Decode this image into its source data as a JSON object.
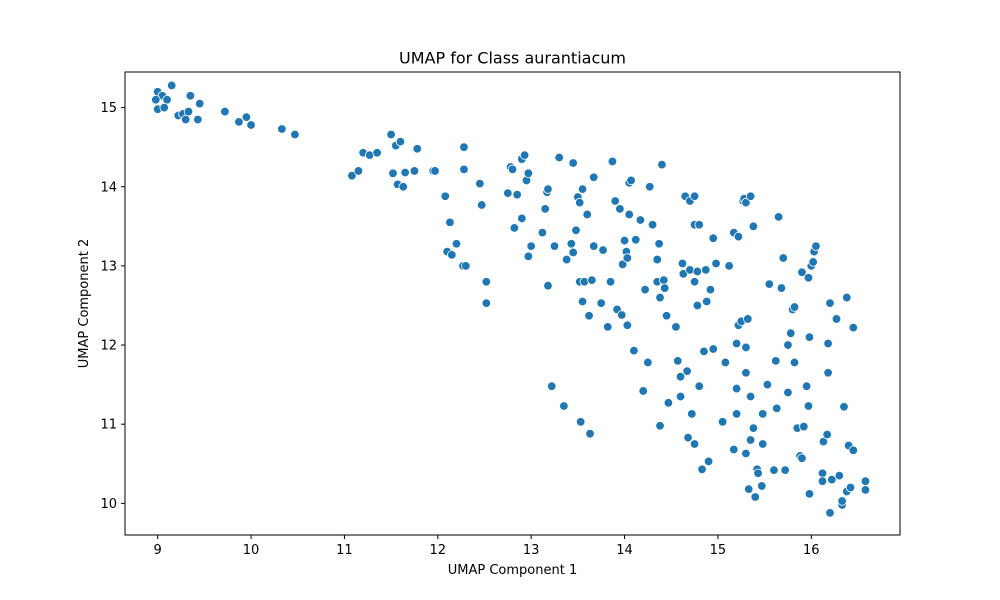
{
  "chart_data": {
    "type": "scatter",
    "title": "UMAP for Class aurantiacum",
    "xlabel": "UMAP Component 1",
    "ylabel": "UMAP Component 2",
    "xlim": [
      8.65,
      16.95
    ],
    "ylim": [
      9.6,
      15.45
    ],
    "xticks": [
      9,
      10,
      11,
      12,
      13,
      14,
      15,
      16
    ],
    "yticks": [
      10,
      11,
      12,
      13,
      14,
      15
    ],
    "grid": false,
    "legend": "none",
    "marker_color": "#1f77b4",
    "series": [
      {
        "points": [
          [
            9.0,
            15.2
          ],
          [
            9.05,
            15.15
          ],
          [
            9.1,
            15.1
          ],
          [
            9.15,
            15.28
          ],
          [
            8.98,
            15.1
          ],
          [
            9.0,
            14.98
          ],
          [
            9.07,
            15.0
          ],
          [
            9.22,
            14.9
          ],
          [
            9.27,
            14.92
          ],
          [
            9.3,
            14.85
          ],
          [
            9.33,
            14.95
          ],
          [
            9.35,
            15.15
          ],
          [
            9.45,
            15.05
          ],
          [
            9.43,
            14.85
          ],
          [
            9.72,
            14.95
          ],
          [
            9.87,
            14.82
          ],
          [
            9.95,
            14.88
          ],
          [
            10.0,
            14.78
          ],
          [
            10.33,
            14.73
          ],
          [
            10.47,
            14.66
          ],
          [
            11.08,
            14.14
          ],
          [
            11.15,
            14.2
          ],
          [
            11.2,
            14.43
          ],
          [
            11.27,
            14.4
          ],
          [
            11.35,
            14.43
          ],
          [
            11.5,
            14.66
          ],
          [
            11.52,
            14.17
          ],
          [
            11.55,
            14.52
          ],
          [
            11.57,
            14.03
          ],
          [
            11.6,
            14.57
          ],
          [
            11.63,
            14.0
          ],
          [
            11.65,
            14.18
          ],
          [
            11.75,
            14.2
          ],
          [
            11.78,
            14.48
          ],
          [
            11.95,
            14.2
          ],
          [
            11.97,
            14.2
          ],
          [
            12.08,
            13.88
          ],
          [
            12.1,
            13.18
          ],
          [
            12.13,
            13.55
          ],
          [
            12.15,
            13.14
          ],
          [
            12.2,
            13.28
          ],
          [
            12.27,
            13.0
          ],
          [
            12.28,
            14.5
          ],
          [
            12.3,
            13.0
          ],
          [
            12.28,
            14.22
          ],
          [
            12.45,
            14.04
          ],
          [
            12.47,
            13.77
          ],
          [
            12.52,
            12.8
          ],
          [
            12.52,
            12.53
          ],
          [
            12.75,
            13.92
          ],
          [
            12.78,
            14.25
          ],
          [
            12.8,
            14.22
          ],
          [
            12.82,
            13.48
          ],
          [
            12.85,
            13.9
          ],
          [
            12.9,
            13.6
          ],
          [
            12.9,
            14.35
          ],
          [
            12.93,
            14.4
          ],
          [
            12.95,
            14.08
          ],
          [
            12.97,
            14.17
          ],
          [
            12.97,
            13.12
          ],
          [
            13.0,
            13.25
          ],
          [
            13.12,
            13.42
          ],
          [
            13.15,
            13.72
          ],
          [
            13.17,
            13.93
          ],
          [
            13.18,
            13.97
          ],
          [
            13.18,
            12.75
          ],
          [
            13.22,
            11.48
          ],
          [
            13.25,
            13.25
          ],
          [
            13.3,
            14.37
          ],
          [
            13.35,
            11.23
          ],
          [
            13.38,
            13.08
          ],
          [
            13.43,
            13.28
          ],
          [
            13.45,
            13.17
          ],
          [
            13.45,
            14.3
          ],
          [
            13.48,
            13.45
          ],
          [
            13.5,
            13.87
          ],
          [
            13.52,
            13.8
          ],
          [
            13.52,
            12.8
          ],
          [
            13.53,
            11.03
          ],
          [
            13.55,
            12.55
          ],
          [
            13.55,
            13.97
          ],
          [
            13.57,
            12.8
          ],
          [
            13.6,
            13.65
          ],
          [
            13.62,
            12.37
          ],
          [
            13.63,
            10.88
          ],
          [
            13.65,
            12.82
          ],
          [
            13.67,
            13.25
          ],
          [
            13.67,
            14.12
          ],
          [
            13.75,
            12.53
          ],
          [
            13.77,
            13.2
          ],
          [
            13.82,
            12.23
          ],
          [
            13.85,
            12.8
          ],
          [
            13.87,
            14.32
          ],
          [
            13.9,
            13.82
          ],
          [
            13.92,
            12.45
          ],
          [
            13.95,
            13.72
          ],
          [
            13.97,
            12.38
          ],
          [
            13.98,
            13.02
          ],
          [
            14.0,
            13.32
          ],
          [
            14.02,
            13.18
          ],
          [
            14.03,
            13.1
          ],
          [
            14.05,
            14.05
          ],
          [
            14.07,
            14.08
          ],
          [
            14.03,
            12.25
          ],
          [
            14.05,
            13.65
          ],
          [
            14.1,
            11.93
          ],
          [
            14.12,
            13.33
          ],
          [
            14.17,
            13.58
          ],
          [
            14.2,
            11.42
          ],
          [
            14.22,
            12.7
          ],
          [
            14.25,
            11.78
          ],
          [
            14.27,
            14.0
          ],
          [
            14.3,
            13.52
          ],
          [
            14.35,
            12.8
          ],
          [
            14.35,
            13.08
          ],
          [
            14.37,
            13.28
          ],
          [
            14.38,
            12.6
          ],
          [
            14.38,
            10.98
          ],
          [
            14.4,
            14.28
          ],
          [
            14.42,
            12.82
          ],
          [
            14.43,
            12.72
          ],
          [
            14.45,
            12.37
          ],
          [
            14.47,
            11.27
          ],
          [
            14.55,
            12.23
          ],
          [
            14.57,
            11.8
          ],
          [
            14.6,
            11.35
          ],
          [
            14.6,
            11.6
          ],
          [
            14.62,
            13.03
          ],
          [
            14.63,
            12.9
          ],
          [
            14.65,
            13.88
          ],
          [
            14.67,
            11.67
          ],
          [
            14.68,
            10.83
          ],
          [
            14.7,
            12.95
          ],
          [
            14.7,
            13.82
          ],
          [
            14.72,
            11.13
          ],
          [
            14.75,
            10.75
          ],
          [
            14.75,
            13.88
          ],
          [
            14.75,
            13.52
          ],
          [
            14.75,
            12.8
          ],
          [
            14.78,
            12.93
          ],
          [
            14.78,
            12.5
          ],
          [
            14.8,
            13.52
          ],
          [
            14.8,
            11.48
          ],
          [
            14.83,
            10.43
          ],
          [
            14.85,
            11.92
          ],
          [
            14.87,
            12.95
          ],
          [
            14.88,
            12.55
          ],
          [
            14.9,
            10.53
          ],
          [
            14.92,
            12.7
          ],
          [
            14.95,
            13.35
          ],
          [
            14.95,
            11.95
          ],
          [
            14.98,
            13.03
          ],
          [
            15.05,
            11.03
          ],
          [
            15.08,
            11.78
          ],
          [
            15.12,
            13.0
          ],
          [
            15.17,
            10.68
          ],
          [
            15.17,
            13.42
          ],
          [
            15.2,
            12.02
          ],
          [
            15.2,
            11.45
          ],
          [
            15.2,
            11.13
          ],
          [
            15.22,
            13.37
          ],
          [
            15.22,
            12.25
          ],
          [
            15.25,
            12.3
          ],
          [
            15.27,
            13.82
          ],
          [
            15.28,
            13.85
          ],
          [
            15.3,
            11.97
          ],
          [
            15.3,
            11.65
          ],
          [
            15.3,
            10.63
          ],
          [
            15.3,
            13.8
          ],
          [
            15.32,
            12.33
          ],
          [
            15.33,
            10.18
          ],
          [
            15.35,
            13.88
          ],
          [
            15.35,
            11.35
          ],
          [
            15.35,
            10.8
          ],
          [
            15.38,
            13.5
          ],
          [
            15.38,
            10.95
          ],
          [
            15.4,
            10.08
          ],
          [
            15.42,
            10.43
          ],
          [
            15.43,
            10.38
          ],
          [
            15.47,
            10.22
          ],
          [
            15.48,
            11.13
          ],
          [
            15.48,
            10.75
          ],
          [
            15.53,
            11.5
          ],
          [
            15.55,
            12.77
          ],
          [
            15.6,
            10.42
          ],
          [
            15.62,
            11.8
          ],
          [
            15.63,
            11.2
          ],
          [
            15.65,
            13.62
          ],
          [
            15.68,
            12.72
          ],
          [
            15.7,
            13.1
          ],
          [
            15.72,
            10.42
          ],
          [
            15.75,
            11.4
          ],
          [
            15.75,
            12.0
          ],
          [
            15.78,
            12.15
          ],
          [
            15.8,
            12.45
          ],
          [
            15.82,
            12.48
          ],
          [
            15.82,
            11.78
          ],
          [
            15.85,
            10.95
          ],
          [
            15.88,
            10.6
          ],
          [
            15.9,
            10.57
          ],
          [
            15.9,
            12.92
          ],
          [
            15.92,
            10.97
          ],
          [
            15.95,
            11.48
          ],
          [
            15.97,
            11.23
          ],
          [
            15.97,
            12.85
          ],
          [
            15.98,
            10.12
          ],
          [
            15.98,
            12.1
          ],
          [
            16.0,
            13.0
          ],
          [
            16.02,
            13.05
          ],
          [
            16.03,
            13.18
          ],
          [
            16.05,
            13.25
          ],
          [
            16.12,
            10.38
          ],
          [
            16.12,
            10.28
          ],
          [
            16.13,
            10.78
          ],
          [
            16.17,
            10.87
          ],
          [
            16.18,
            11.65
          ],
          [
            16.18,
            12.02
          ],
          [
            16.2,
            12.53
          ],
          [
            16.2,
            9.88
          ],
          [
            16.22,
            10.3
          ],
          [
            16.27,
            12.33
          ],
          [
            16.3,
            10.35
          ],
          [
            16.33,
            9.98
          ],
          [
            16.33,
            10.03
          ],
          [
            16.35,
            11.22
          ],
          [
            16.38,
            10.15
          ],
          [
            16.38,
            12.6
          ],
          [
            16.4,
            10.73
          ],
          [
            16.42,
            10.2
          ],
          [
            16.45,
            12.22
          ],
          [
            16.45,
            10.67
          ],
          [
            16.58,
            10.28
          ],
          [
            16.58,
            10.17
          ]
        ]
      }
    ]
  }
}
